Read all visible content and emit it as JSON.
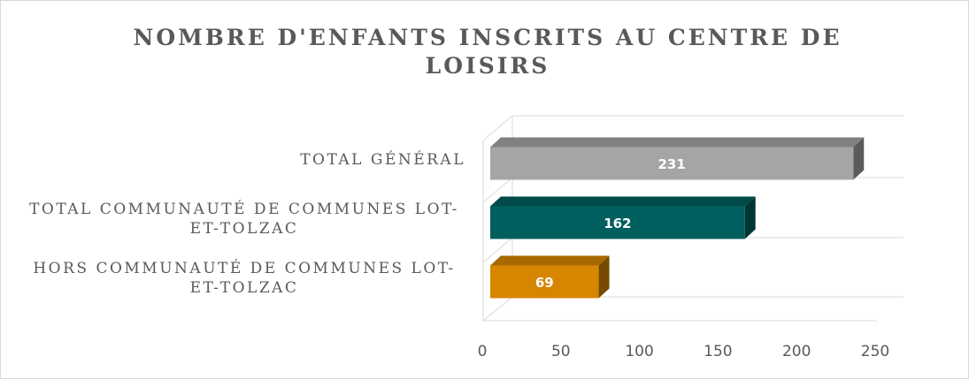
{
  "chart_data": {
    "type": "bar3d_horizontal",
    "title": "NOMBRE D'ENFANTS INSCRITS AU CENTRE DE LOISIRS",
    "categories": [
      "TOTAL GÉNÉRAL",
      "TOTAL COMMUNAUTÉ DE COMMUNES LOT-ET-TOLZAC",
      "HORS COMMUNAUTÉ DE COMMUNES LOT-ET-TOLZAC"
    ],
    "values": [
      231,
      162,
      69
    ],
    "colors": [
      "#a5a5a5",
      "#00605f",
      "#d68600"
    ],
    "xlim": [
      0,
      250
    ],
    "xticks": [
      0,
      50,
      100,
      150,
      200,
      250
    ]
  }
}
